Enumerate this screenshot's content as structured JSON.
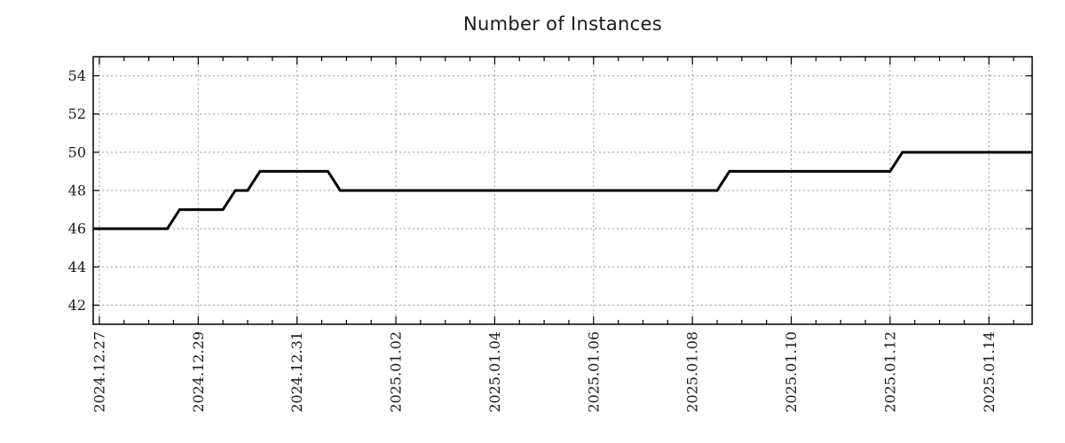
{
  "colors": {
    "line": "#000000",
    "grid": "#9a9a9a",
    "axis": "#000000",
    "background": "#ffffff",
    "text": "#1a1a1a"
  },
  "chart_data": {
    "type": "line",
    "title": "Number of Instances",
    "xlabel": "",
    "ylabel": "",
    "grid": true,
    "legend": false,
    "ylim": [
      41,
      55
    ],
    "xlim": [
      "2024-12-26 21:00",
      "2025-01-14 21:00"
    ],
    "y_ticks": [
      42,
      44,
      46,
      48,
      50,
      52,
      54
    ],
    "x_ticks": [
      "2024.12.27",
      "2024.12.29",
      "2024.12.31",
      "2025.01.02",
      "2025.01.04",
      "2025.01.06",
      "2025.01.08",
      "2025.01.10",
      "2025.01.12",
      "2025.01.14"
    ],
    "x_minor_tick_hours": 12,
    "points": [
      [
        "2024-12-26 21:00",
        46
      ],
      [
        "2024-12-28 09:00",
        46
      ],
      [
        "2024-12-28 15:00",
        47
      ],
      [
        "2024-12-29 12:00",
        47
      ],
      [
        "2024-12-29 18:00",
        48
      ],
      [
        "2024-12-30 00:00",
        48
      ],
      [
        "2024-12-30 06:00",
        49
      ],
      [
        "2024-12-31 15:00",
        49
      ],
      [
        "2024-12-31 21:00",
        48
      ],
      [
        "2025-01-08 12:00",
        48
      ],
      [
        "2025-01-08 18:00",
        49
      ],
      [
        "2025-01-12 00:00",
        49
      ],
      [
        "2025-01-12 06:00",
        50
      ],
      [
        "2025-01-14 21:00",
        50
      ]
    ]
  }
}
